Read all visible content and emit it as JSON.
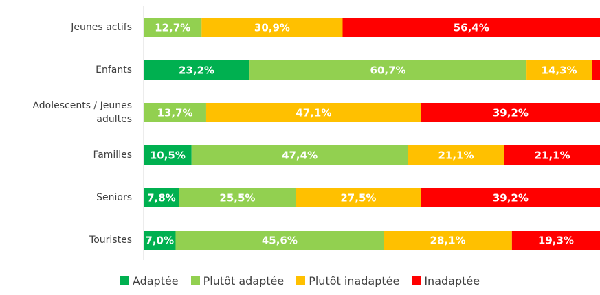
{
  "chart_data": {
    "type": "stacked_bar_horizontal",
    "categories": [
      "Jeunes actifs",
      "Enfants",
      "Adolescents / Jeunes adultes",
      "Familles",
      "Seniors",
      "Touristes"
    ],
    "xlim": [
      0,
      100
    ],
    "legend": "bottom",
    "series": [
      {
        "name": "Adaptée",
        "color": "#00b050",
        "values": [
          0,
          23.2,
          0,
          10.5,
          7.8,
          7.0
        ],
        "value_labels": [
          null,
          "23,2%",
          null,
          "10,5%",
          "7,8%",
          "7,0%"
        ]
      },
      {
        "name": "Plutôt adaptée",
        "color": "#92d050",
        "values": [
          12.7,
          60.7,
          13.7,
          47.4,
          25.5,
          45.6
        ],
        "value_labels": [
          "12,7%",
          "60,7%",
          "13,7%",
          "47,4%",
          "25,5%",
          "45,6%"
        ]
      },
      {
        "name": "Plutôt inadaptée",
        "color": "#ffc000",
        "values": [
          30.9,
          14.3,
          47.1,
          21.1,
          27.5,
          28.1
        ],
        "value_labels": [
          "30,9%",
          "14,3%",
          "47,1%",
          "21,1%",
          "27,5%",
          "28,1%"
        ]
      },
      {
        "name": "Inadaptée",
        "color": "#ff0000",
        "values": [
          56.4,
          1.8,
          39.2,
          21.1,
          39.2,
          19.3
        ],
        "value_labels": [
          "56,4%",
          null,
          "39,2%",
          "21,1%",
          "39,2%",
          "19,3%"
        ]
      }
    ]
  }
}
